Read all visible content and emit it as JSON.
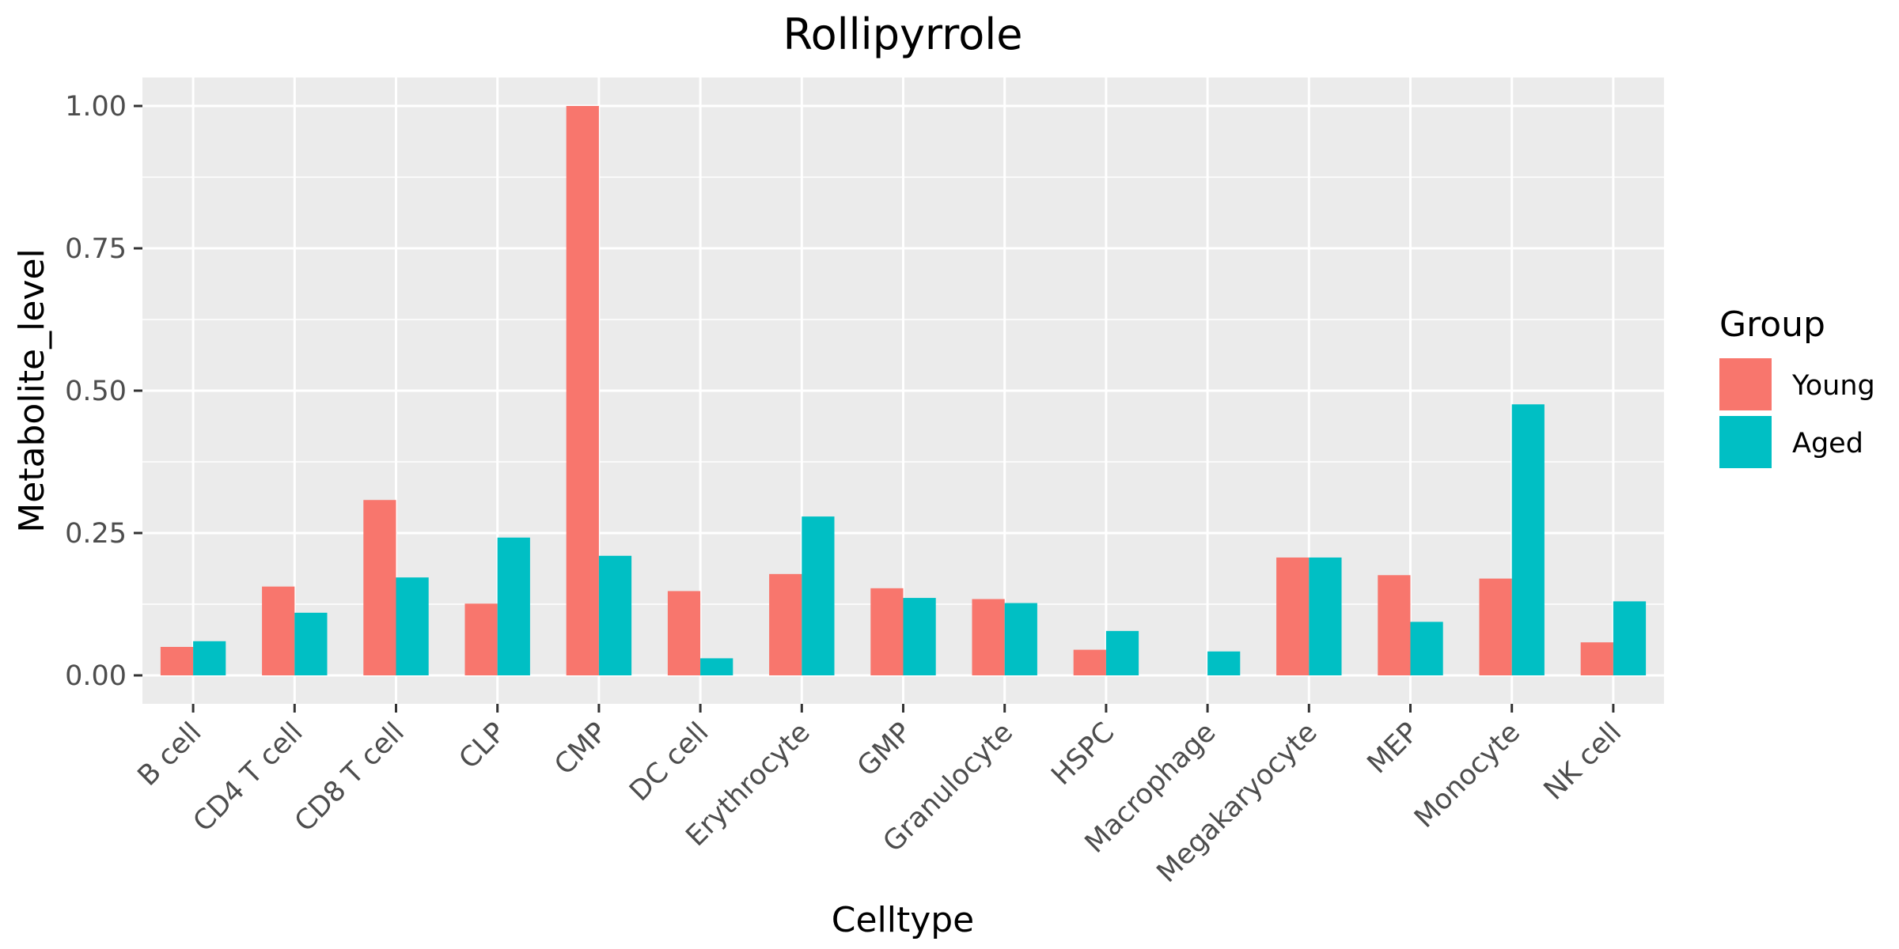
{
  "chart_data": {
    "type": "bar",
    "title": "Rollipyrrole",
    "xlabel": "Celltype",
    "ylabel": "Metabolite_level",
    "categories": [
      "B cell",
      "CD4 T cell",
      "CD8 T cell",
      "CLP",
      "CMP",
      "DC cell",
      "Erythrocyte",
      "GMP",
      "Granulocyte",
      "HSPC",
      "Macrophage",
      "Megakaryocyte",
      "MEP",
      "Monocyte",
      "NK cell"
    ],
    "series": [
      {
        "name": "Young",
        "color": "#F8766D",
        "values": [
          0.05,
          0.156,
          0.308,
          0.126,
          1.0,
          0.148,
          0.178,
          0.153,
          0.134,
          0.045,
          null,
          0.207,
          0.176,
          0.17,
          0.058
        ]
      },
      {
        "name": "Aged",
        "color": "#00BFC4",
        "values": [
          0.06,
          0.11,
          0.172,
          0.242,
          0.21,
          0.03,
          0.279,
          0.136,
          0.127,
          0.078,
          0.042,
          0.207,
          0.094,
          0.476,
          0.13
        ]
      }
    ],
    "ylim": [
      -0.05,
      1.05
    ],
    "yticks": [
      0.0,
      0.25,
      0.5,
      0.75,
      1.0
    ],
    "ytick_labels": [
      "0.00",
      "0.25",
      "0.50",
      "0.75",
      "1.00"
    ],
    "grid": true,
    "legend": {
      "title": "Group",
      "position": "right"
    }
  }
}
